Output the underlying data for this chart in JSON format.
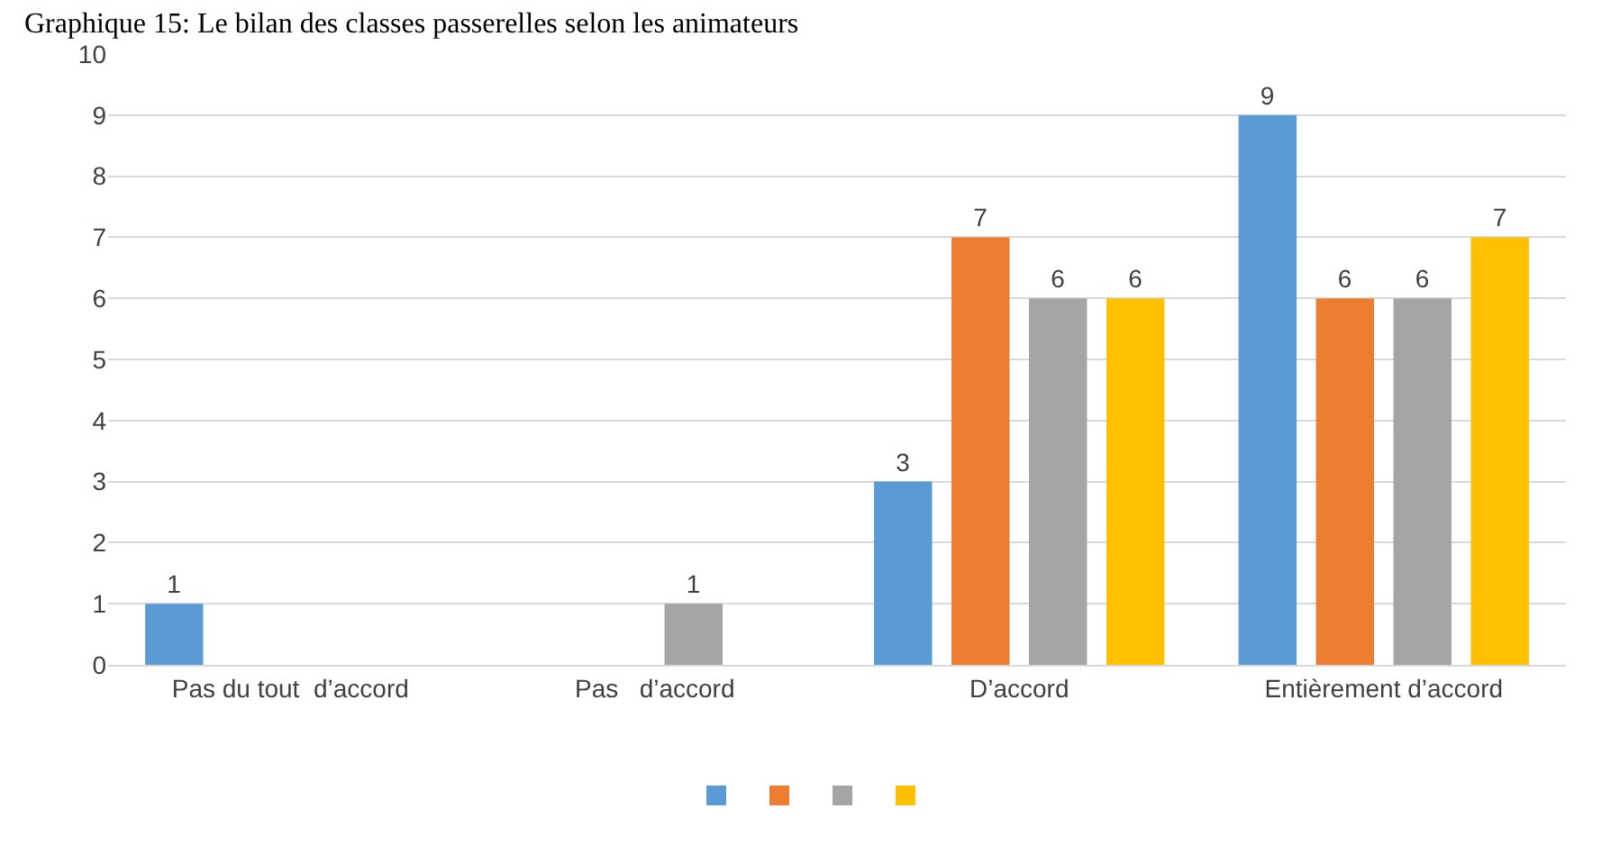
{
  "chart_data": {
    "type": "bar",
    "title": "Graphique 15: Le bilan des classes passerelles selon les animateurs",
    "categories": [
      "Pas du tout  d’accord",
      "Pas   d’accord",
      "D’accord",
      "Entièrement d’accord"
    ],
    "series": [
      {
        "color": "#5b9bd5",
        "values": [
          1,
          0,
          3,
          9
        ],
        "value_labels": [
          "1",
          null,
          "3",
          "9"
        ]
      },
      {
        "color": "#ed7d31",
        "values": [
          0,
          0,
          7,
          6
        ],
        "value_labels": [
          null,
          null,
          "7",
          "6"
        ]
      },
      {
        "color": "#a5a5a5",
        "values": [
          0,
          1,
          6,
          6
        ],
        "value_labels": [
          null,
          "1",
          "6",
          "6"
        ]
      },
      {
        "color": "#ffc000",
        "values": [
          0,
          0,
          6,
          7
        ],
        "value_labels": [
          null,
          null,
          "6",
          "7"
        ]
      }
    ],
    "ylim": [
      0,
      10
    ],
    "yticks": [
      0,
      1,
      2,
      3,
      4,
      5,
      6,
      7,
      8,
      9,
      10
    ],
    "grid": "y"
  }
}
